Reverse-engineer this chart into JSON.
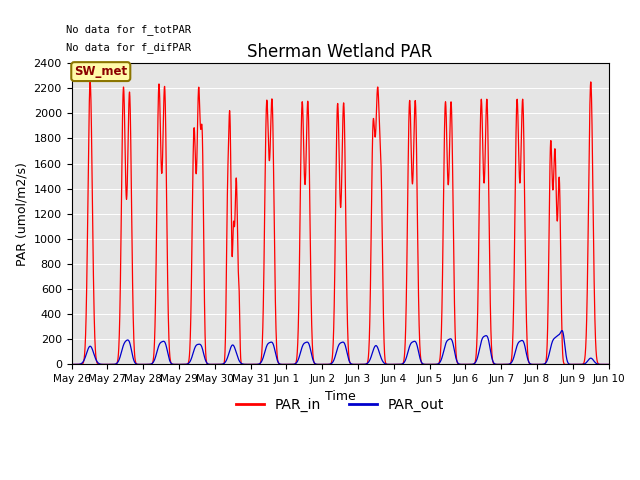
{
  "title": "Sherman Wetland PAR",
  "xlabel": "Time",
  "ylabel": "PAR (umol/m2/s)",
  "ylim": [
    0,
    2400
  ],
  "background_color": "#e5e5e5",
  "top_left_text_line1": "No data for f_totPAR",
  "top_left_text_line2": "No data for f_difPAR",
  "legend_box_label": "SW_met",
  "legend_box_color": "#fffaaa",
  "legend_box_border": "#8b7500",
  "par_in_color": "#ff0000",
  "par_out_color": "#0000cc",
  "par_in_label": "PAR_in",
  "par_out_label": "PAR_out",
  "num_days": 15,
  "tick_labels": [
    "May 26",
    "May 27",
    "May 28",
    "May 29",
    "May 30",
    "May 31",
    "Jun 1",
    "Jun 2",
    "Jun 3",
    "Jun 4",
    "Jun 5",
    "Jun 6",
    "Jun 7",
    "Jun 8",
    "Jun 9",
    "Jun 10"
  ],
  "figsize": [
    6.4,
    4.8
  ],
  "dpi": 100
}
